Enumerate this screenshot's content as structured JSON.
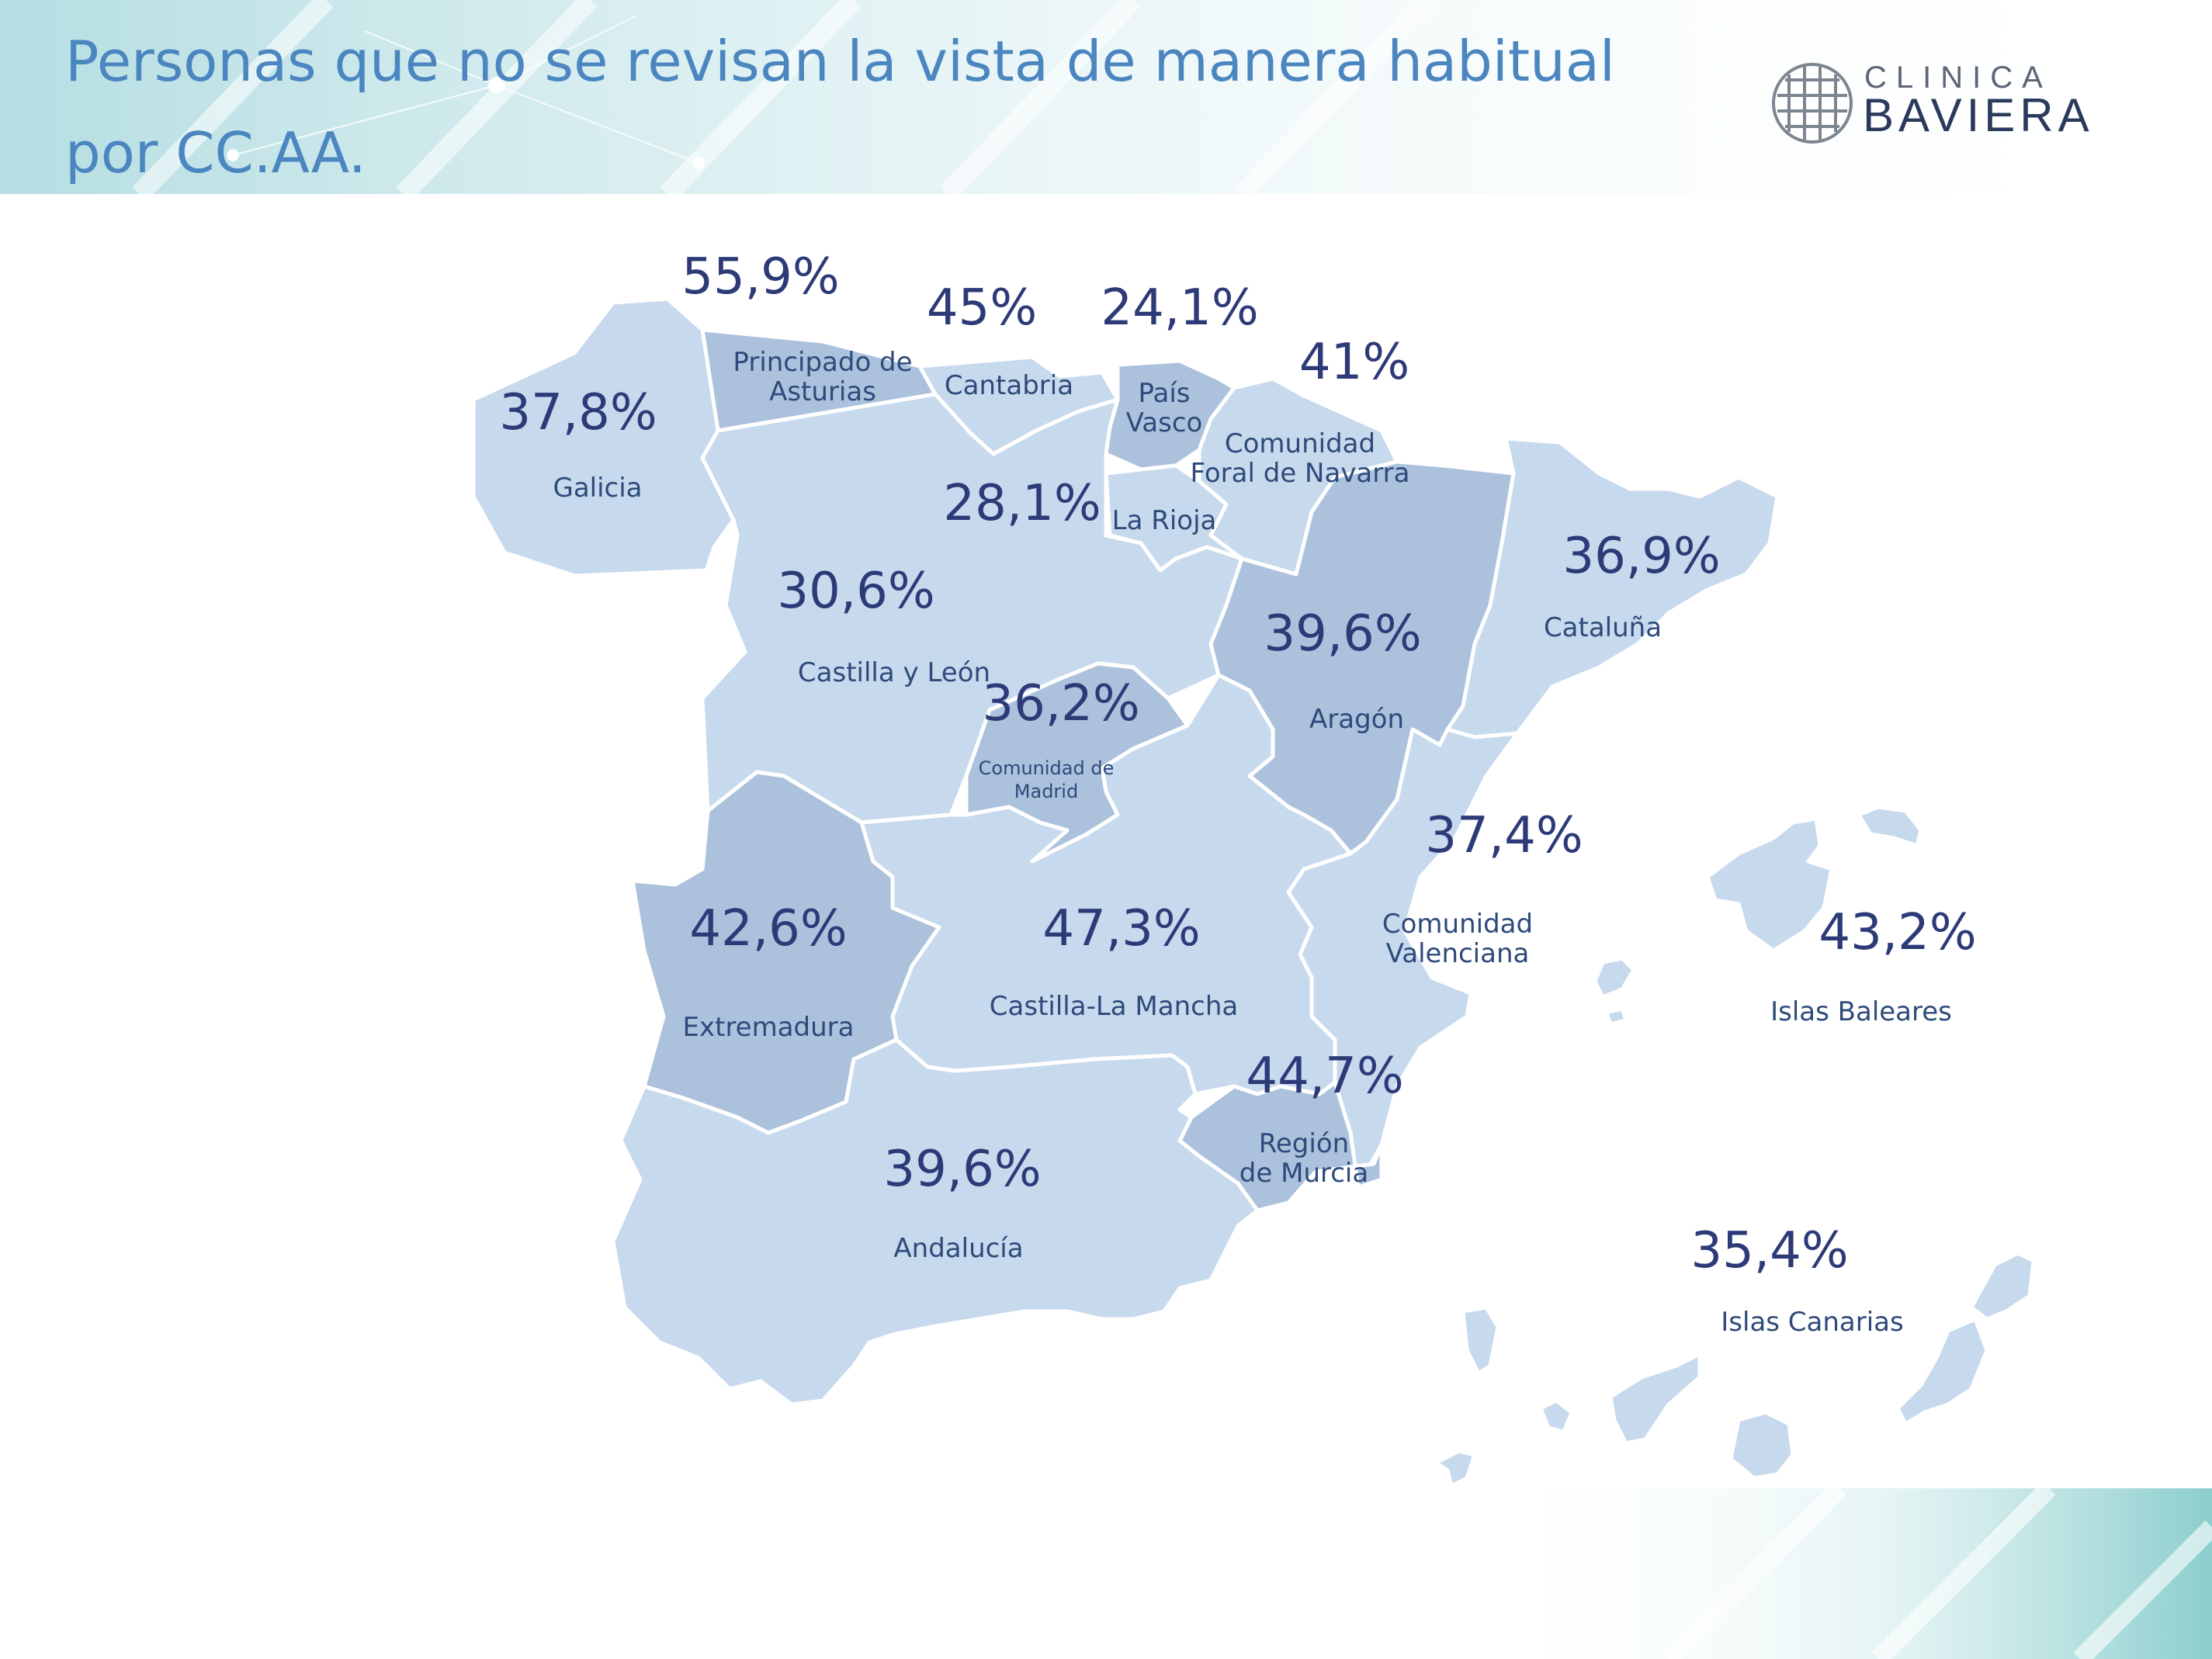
{
  "title": {
    "line1": "Personas que no se revisan la vista de manera habitual",
    "line2": "por CC.AA."
  },
  "logo": {
    "line1": "CLINICA",
    "line2": "BAVIERA"
  },
  "colors": {
    "light": "#c7d9ed",
    "dark": "#abc1dc",
    "text": "#2d3a78",
    "title": "#4b86c0"
  },
  "regions": [
    {
      "id": "galicia",
      "name": "Galicia",
      "value": "37,8%",
      "shade": "light"
    },
    {
      "id": "asturias",
      "name": "Principado de\nAsturias",
      "value": "55,9%",
      "shade": "dark"
    },
    {
      "id": "cantabria",
      "name": "Cantabria",
      "value": "45%",
      "shade": "light"
    },
    {
      "id": "pais-vasco",
      "name": "País\nVasco",
      "value": "24,1%",
      "shade": "dark"
    },
    {
      "id": "navarra",
      "name": "Comunidad\nForal de Navarra",
      "value": "41%",
      "shade": "light"
    },
    {
      "id": "la-rioja",
      "name": "La Rioja",
      "value": "28,1%",
      "shade": "light"
    },
    {
      "id": "castilla-leon",
      "name": "Castilla y León",
      "value": "30,6%",
      "shade": "light"
    },
    {
      "id": "cataluna",
      "name": "Cataluña",
      "value": "36,9%",
      "shade": "light"
    },
    {
      "id": "aragon",
      "name": "Aragón",
      "value": "39,6%",
      "shade": "dark"
    },
    {
      "id": "madrid",
      "name": "Comunidad de\nMadrid",
      "value": "36,2%",
      "shade": "dark"
    },
    {
      "id": "valenciana",
      "name": "Comunidad\nValenciana",
      "value": "37,4%",
      "shade": "light"
    },
    {
      "id": "extremadura",
      "name": "Extremadura",
      "value": "42,6%",
      "shade": "dark"
    },
    {
      "id": "castilla-la-mancha",
      "name": "Castilla-La Mancha",
      "value": "47,3%",
      "shade": "light"
    },
    {
      "id": "baleares",
      "name": "Islas Baleares",
      "value": "43,2%",
      "shade": "light"
    },
    {
      "id": "murcia",
      "name": "Región\nde Murcia",
      "value": "44,7%",
      "shade": "dark"
    },
    {
      "id": "andalucia",
      "name": "Andalucía",
      "value": "39,6%",
      "shade": "light"
    },
    {
      "id": "canarias",
      "name": "Islas Canarias",
      "value": "35,4%",
      "shade": "light"
    }
  ]
}
